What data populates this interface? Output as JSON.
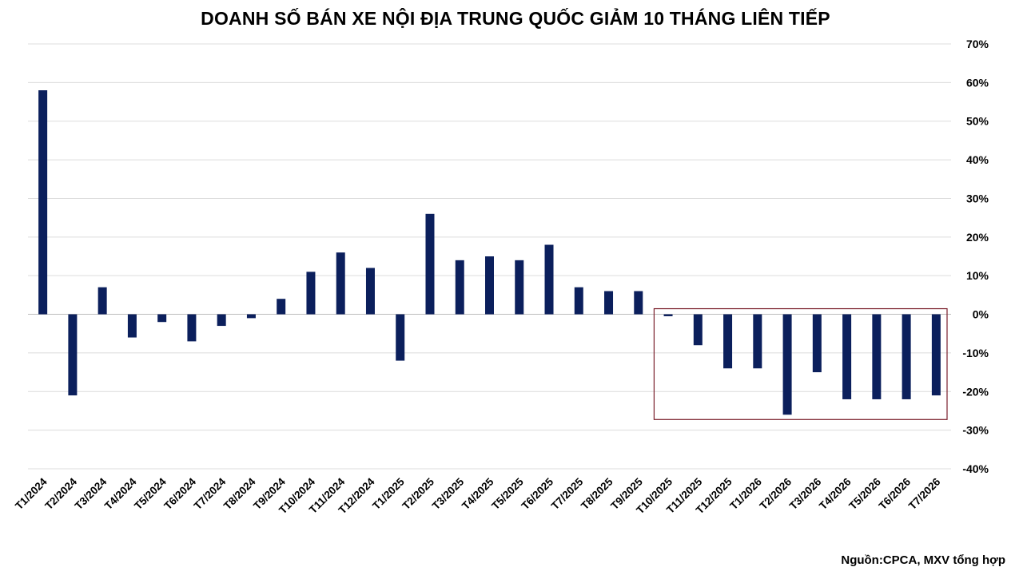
{
  "chart_data": {
    "type": "bar",
    "title": "DOANH SỐ BÁN XE NỘI ĐỊA TRUNG QUỐC GIẢM 10 THÁNG LIÊN TIẾP",
    "categories": [
      "T1/2024",
      "T2/2024",
      "T3/2024",
      "T4/2024",
      "T5/2024",
      "T6/2024",
      "T7/2024",
      "T8/2024",
      "T9/2024",
      "T10/2024",
      "T11/2024",
      "T12/2024",
      "T1/2025",
      "T2/2025",
      "T3/2025",
      "T4/2025",
      "T5/2025",
      "T6/2025",
      "T7/2025",
      "T8/2025",
      "T9/2025",
      "T10/2025",
      "T11/2025",
      "T12/2025",
      "T1/2026",
      "T2/2026",
      "T3/2026",
      "T4/2026",
      "T5/2026",
      "T6/2026",
      "T7/2026"
    ],
    "values": [
      58,
      -21,
      7,
      -6,
      -2,
      -7,
      -3,
      -1,
      4,
      11,
      16,
      12,
      -12,
      26,
      14,
      15,
      14,
      18,
      7,
      6,
      6,
      -0.5,
      -8,
      -14,
      -14,
      -26,
      -15,
      -22,
      -22,
      -22,
      -21
    ],
    "ylim": [
      -40,
      70
    ],
    "yticks": [
      70,
      60,
      50,
      40,
      30,
      20,
      10,
      0,
      -10,
      -20,
      -30,
      -40
    ],
    "ytick_labels": [
      "70%",
      "60%",
      "50%",
      "40%",
      "30%",
      "20%",
      "10%",
      "0%",
      "-10%",
      "-20%",
      "-30%",
      "-40%"
    ],
    "y_axis_side": "right",
    "grid": true,
    "bar_color": "#0b1f5c",
    "highlight_box": {
      "from_category": "T10/2025",
      "to_category": "T7/2026",
      "color": "#7a1f2b"
    },
    "source": "Nguồn:CPCA, MXV tổng hợp"
  }
}
